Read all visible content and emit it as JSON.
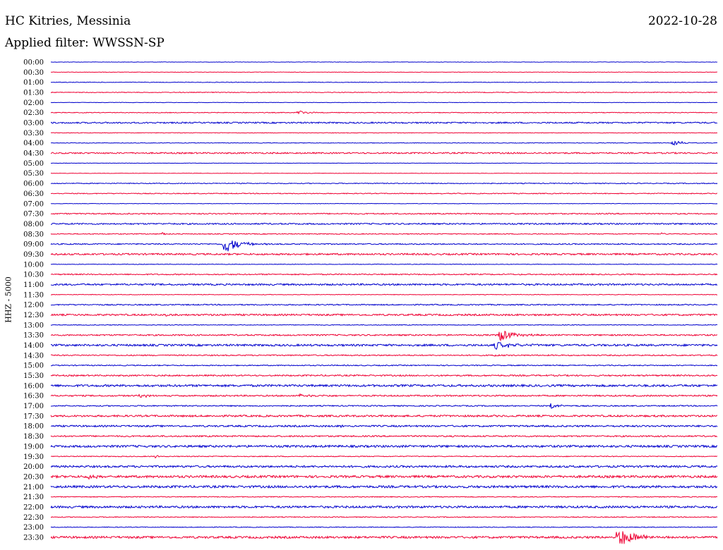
{
  "header": {
    "station": "HC Kitries, Messinia",
    "filter": "Applied filter: WWSSN-SP",
    "date": "2022-10-28"
  },
  "side_label": "HHZ - 5000",
  "colors": {
    "trace_a": "#0000cc",
    "trace_b": "#ee0033"
  },
  "chart_data": {
    "type": "line",
    "title": "HC Kitries, Messinia",
    "subtitle": "Applied filter: WWSSN-SP",
    "date": "2022-10-28",
    "ylabel": "HHZ - 5000",
    "xlabel": "",
    "x_range_minutes": [
      0,
      30
    ],
    "y_tick_labels": [
      "00:00",
      "00:30",
      "01:00",
      "01:30",
      "02:00",
      "02:30",
      "03:00",
      "03:30",
      "04:00",
      "04:30",
      "05:00",
      "05:30",
      "06:00",
      "06:30",
      "07:00",
      "07:30",
      "08:00",
      "08:30",
      "09:00",
      "09:30",
      "10:00",
      "10:30",
      "11:00",
      "11:30",
      "12:00",
      "12:30",
      "13:00",
      "13:30",
      "14:00",
      "14:30",
      "15:00",
      "15:30",
      "16:00",
      "16:30",
      "17:00",
      "17:30",
      "18:00",
      "18:30",
      "19:00",
      "19:30",
      "20:00",
      "20:30",
      "21:00",
      "21:30",
      "22:00",
      "22:30",
      "23:00",
      "23:30"
    ],
    "series_colors": [
      "#0000cc",
      "#ee0033"
    ],
    "noise_levels": [
      0.3,
      0.3,
      0.4,
      0.5,
      0.3,
      0.5,
      1.0,
      0.4,
      0.4,
      1.0,
      0.3,
      0.3,
      0.6,
      0.6,
      0.3,
      0.8,
      1.0,
      0.6,
      0.8,
      1.2,
      0.4,
      0.8,
      1.2,
      0.4,
      0.8,
      1.2,
      0.5,
      1.0,
      1.4,
      0.8,
      0.7,
      1.0,
      1.5,
      1.0,
      0.8,
      1.3,
      1.2,
      1.0,
      1.5,
      0.6,
      1.4,
      1.6,
      1.6,
      0.6,
      1.5,
      0.6,
      0.5,
      1.5
    ],
    "events": [
      {
        "row": 5,
        "minute": 11.1,
        "amplitude": 4,
        "duration_min": 0.6
      },
      {
        "row": 8,
        "minute": 28.0,
        "amplitude": 5,
        "duration_min": 0.6
      },
      {
        "row": 13,
        "minute": 17.5,
        "amplitude": 2,
        "duration_min": 0.3
      },
      {
        "row": 17,
        "minute": 5.0,
        "amplitude": 3,
        "duration_min": 0.3
      },
      {
        "row": 17,
        "minute": 27.5,
        "amplitude": 2,
        "duration_min": 0.2
      },
      {
        "row": 18,
        "minute": 7.8,
        "amplitude": 13,
        "duration_min": 1.0
      },
      {
        "row": 25,
        "minute": 5.2,
        "amplitude": 3,
        "duration_min": 0.2
      },
      {
        "row": 27,
        "minute": 20.2,
        "amplitude": 9,
        "duration_min": 1.0
      },
      {
        "row": 28,
        "minute": 20.0,
        "amplitude": 6,
        "duration_min": 1.0
      },
      {
        "row": 29,
        "minute": 20.0,
        "amplitude": 2,
        "duration_min": 0.3
      },
      {
        "row": 33,
        "minute": 11.2,
        "amplitude": 3,
        "duration_min": 1.0
      },
      {
        "row": 33,
        "minute": 4.0,
        "amplitude": 2,
        "duration_min": 1.0
      },
      {
        "row": 34,
        "minute": 22.5,
        "amplitude": 4,
        "duration_min": 0.6
      },
      {
        "row": 36,
        "minute": 13.0,
        "amplitude": 2,
        "duration_min": 0.4
      },
      {
        "row": 39,
        "minute": 4.7,
        "amplitude": 3,
        "duration_min": 0.2
      },
      {
        "row": 41,
        "minute": 1.7,
        "amplitude": 3,
        "duration_min": 0.6
      },
      {
        "row": 47,
        "minute": 25.5,
        "amplitude": 14,
        "duration_min": 1.2
      }
    ]
  }
}
